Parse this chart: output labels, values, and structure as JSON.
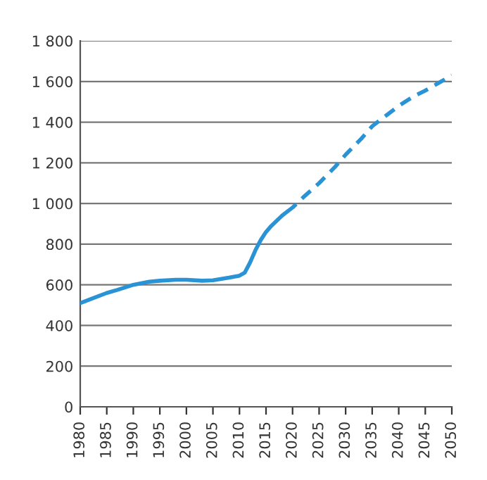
{
  "chart_data": {
    "type": "line",
    "x": [
      1980,
      1982,
      1985,
      1987,
      1990,
      1993,
      1995,
      1998,
      2000,
      2003,
      2005,
      2008,
      2010,
      2011,
      2012,
      2013,
      2014,
      2015,
      2016,
      2017,
      2018,
      2019
    ],
    "series": [
      {
        "color": "#2a93d5",
        "line_style": "solid",
        "values": [
          510,
          530,
          560,
          575,
          600,
          615,
          620,
          625,
          625,
          620,
          622,
          635,
          645,
          660,
          710,
          770,
          820,
          860,
          890,
          915,
          940,
          960
        ]
      },
      {
        "color": "#2a93d5",
        "line_style": "dashed",
        "x": [
          2019,
          2020,
          2022,
          2025,
          2028,
          2030,
          2033,
          2035,
          2038,
          2040,
          2043,
          2045,
          2048,
          2050
        ],
        "values": [
          960,
          980,
          1030,
          1100,
          1180,
          1240,
          1320,
          1380,
          1440,
          1480,
          1530,
          1555,
          1600,
          1630
        ]
      }
    ],
    "xlim": [
      1980,
      2050
    ],
    "xticks": [
      1980,
      1985,
      1990,
      1995,
      2000,
      2005,
      2010,
      2015,
      2020,
      2025,
      2030,
      2035,
      2040,
      2045,
      2050
    ],
    "ylim": [
      0,
      1800
    ],
    "yticks": [
      0,
      200,
      400,
      600,
      800,
      {
        "value": 1000,
        "label": "1 000"
      },
      {
        "value": 1200,
        "label": "1 200"
      },
      {
        "value": 1400,
        "label": "1 400"
      },
      {
        "value": 1600,
        "label": "1 600"
      },
      {
        "value": 1800,
        "label": "1 800"
      }
    ],
    "grid": "y",
    "marker": "none"
  }
}
